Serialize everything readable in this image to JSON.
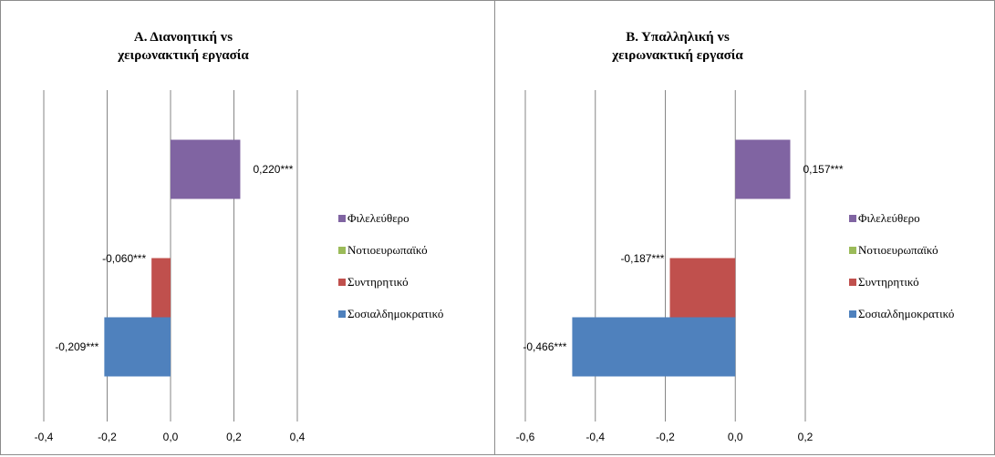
{
  "chart_data": [
    {
      "type": "bar",
      "orientation": "horizontal",
      "title": [
        "Α. Διανοητική vs",
        "χειρωνακτική εργασία"
      ],
      "xlim": [
        -0.4,
        0.4
      ],
      "xticks": [
        -0.4,
        -0.2,
        0.0,
        0.2,
        0.4
      ],
      "xtick_labels": [
        "-0,4",
        "-0,2",
        "0,0",
        "0,2",
        "0,4"
      ],
      "grid": "vertical",
      "legend_position": "right",
      "series": [
        {
          "name": "Σοσιαλδημοκρατικό",
          "color": "#4f81bd",
          "value": -0.209,
          "label": "-0,209***"
        },
        {
          "name": "Συντηρητικό",
          "color": "#c0504d",
          "value": -0.06,
          "label": "-0,060***"
        },
        {
          "name": "Νοτιοευρωπαϊκό",
          "color": "#9bbb59",
          "value": 0,
          "label": ""
        },
        {
          "name": "Φιλελεύθερο",
          "color": "#8064a2",
          "value": 0.22,
          "label": "0,220***"
        }
      ]
    },
    {
      "type": "bar",
      "orientation": "horizontal",
      "title": [
        "Β. Υπαλληλική vs",
        "χειρωνακτική εργασία"
      ],
      "xlim": [
        -0.6,
        0.2
      ],
      "xticks": [
        -0.6,
        -0.4,
        -0.2,
        0.0,
        0.2
      ],
      "xtick_labels": [
        "-0,6",
        "-0,4",
        "-0,2",
        "0,0",
        "0,2"
      ],
      "grid": "vertical",
      "legend_position": "right",
      "series": [
        {
          "name": "Σοσιαλδημοκρατικό",
          "color": "#4f81bd",
          "value": -0.466,
          "label": "-0,466***"
        },
        {
          "name": "Συντηρητικό",
          "color": "#c0504d",
          "value": -0.187,
          "label": "-0,187***"
        },
        {
          "name": "Νοτιοευρωπαϊκό",
          "color": "#9bbb59",
          "value": 0,
          "label": ""
        },
        {
          "name": "Φιλελεύθερο",
          "color": "#8064a2",
          "value": 0.157,
          "label": "0,157***"
        }
      ]
    }
  ]
}
